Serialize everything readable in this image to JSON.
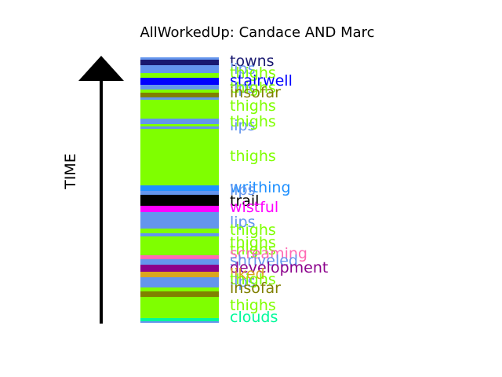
{
  "chart_data": {
    "type": "bar",
    "title": "AllWorkedUp: Candace AND Marc",
    "ylabel": "TIME",
    "bands": [
      {
        "label": "",
        "color": "#6495ED"
      },
      {
        "label": "towns",
        "color": "#191970"
      },
      {
        "label": "lips",
        "color": "#6495ED"
      },
      {
        "label": "thighs",
        "color": "#7FFF00"
      },
      {
        "label": "stairwell",
        "color": "#0000FF"
      },
      {
        "label": "lips",
        "color": "#6495ED"
      },
      {
        "label": "thighs",
        "color": "#7FFF00"
      },
      {
        "label": "insofar",
        "color": "#808000"
      },
      {
        "label": "lips",
        "color": "#6495ED"
      },
      {
        "label": "thighs",
        "color": "#7FFF00"
      },
      {
        "label": "lips",
        "color": "#6495ED"
      },
      {
        "label": "thighs",
        "color": "#7FFF00"
      },
      {
        "label": "lips",
        "color": "#6495ED"
      },
      {
        "label": "thighs",
        "color": "#7FFF00"
      },
      {
        "label": "writhing",
        "color": "#1E90FF"
      },
      {
        "label": "lips",
        "color": "#6495ED"
      },
      {
        "label": "trail",
        "color": "#000000"
      },
      {
        "label": "wistful",
        "color": "#FF00FF"
      },
      {
        "label": "lips",
        "color": "#6495ED"
      },
      {
        "label": "thighs",
        "color": "#7FFF00"
      },
      {
        "label": "lips",
        "color": "#6495ED"
      },
      {
        "label": "thighs",
        "color": "#7FFF00"
      },
      {
        "label": "thighs",
        "color": "#7FFF00"
      },
      {
        "label": "screaming",
        "color": "#FF69B4"
      },
      {
        "label": "shriveled",
        "color": "#6495ED"
      },
      {
        "label": "development",
        "color": "#8B008B"
      },
      {
        "label": "liked",
        "color": "#DAA520"
      },
      {
        "label": "lips",
        "color": "#6495ED"
      },
      {
        "label": "thighs",
        "color": "#7FFF00"
      },
      {
        "label": "insofar",
        "color": "#808000"
      },
      {
        "label": "thighs",
        "color": "#7FFF00"
      },
      {
        "label": "clouds",
        "color": "#00FA9A"
      },
      {
        "label": "",
        "color": "#6495ED"
      }
    ]
  }
}
